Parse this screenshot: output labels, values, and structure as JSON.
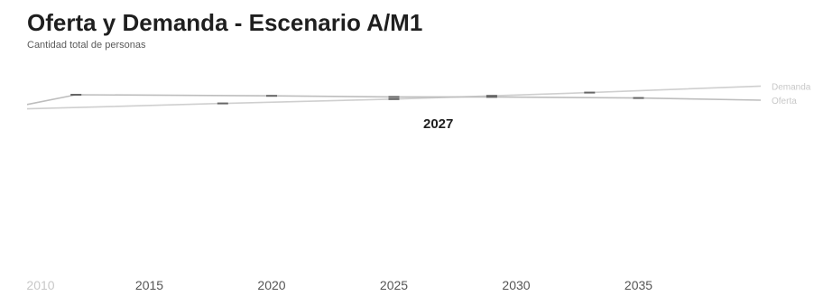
{
  "chart": {
    "title": "Oferta y Demanda - Escenario A/M1",
    "subtitle": "Cantidad total de personas",
    "highlight_label": "2027"
  },
  "colors": {
    "demand": "#cfcfcf",
    "supply": "#bdbdbd",
    "text": "#1f1f1f",
    "tick": "#555555"
  },
  "chart_data": {
    "type": "line",
    "title": "Oferta y Demanda - Escenario A/M1",
    "subtitle": "Cantidad total de personas",
    "x_ticks": [
      2010,
      2015,
      2020,
      2025,
      2030,
      2035
    ],
    "xlim": [
      2010,
      2040
    ],
    "ylim": [
      0,
      100
    ],
    "grid": false,
    "series": [
      {
        "name": "Demanda",
        "x": [
          2010,
          2018,
          2025,
          2029,
          2033,
          2040
        ],
        "y": [
          62,
          67,
          71,
          74,
          77,
          83
        ]
      },
      {
        "name": "Oferta",
        "x": [
          2010,
          2012,
          2020,
          2025,
          2029,
          2035,
          2040
        ],
        "y": [
          66,
          75,
          74,
          73,
          73,
          72,
          70
        ]
      }
    ],
    "annotations": [
      {
        "x": 2027,
        "text": "2027"
      }
    ]
  }
}
